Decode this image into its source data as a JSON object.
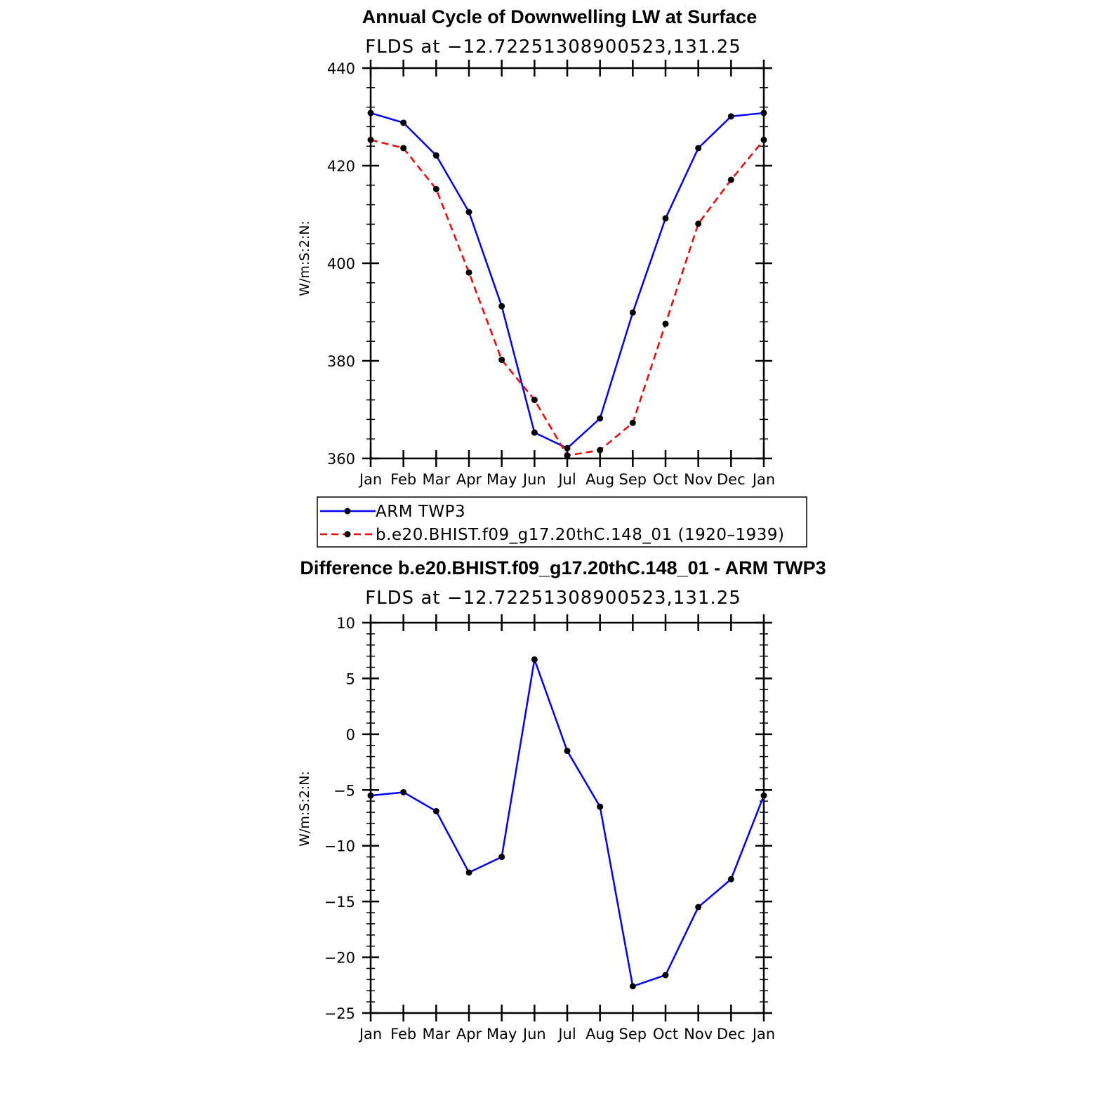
{
  "chart_data": [
    {
      "type": "line",
      "title": "Annual Cycle of Downwelling LW at Surface",
      "subtitle": "FLDS at −12.72251308900523,131.25",
      "ylabel": "W/m:S:2:N:",
      "xlabel": "",
      "ylim": [
        360,
        440
      ],
      "yticks": [
        360,
        380,
        400,
        420,
        440
      ],
      "yticklabels": [
        "360",
        "380",
        "400",
        "420",
        "440"
      ],
      "categories": [
        "Jan",
        "Feb",
        "Mar",
        "Apr",
        "May",
        "Jun",
        "Jul",
        "Aug",
        "Sep",
        "Oct",
        "Nov",
        "Dec",
        "Jan"
      ],
      "series": [
        {
          "name": "ARM TWP3",
          "color": "#0000ff",
          "dash": "solid",
          "values": [
            430.8,
            428.8,
            422.1,
            410.5,
            391.2,
            365.3,
            362.1,
            368.2,
            389.9,
            409.2,
            423.6,
            430.1,
            430.8
          ]
        },
        {
          "name": "b.e20.BHIST.f09_g17.20thC.148_01 (1920–1939)",
          "color": "#ff0000",
          "dash": "dashed",
          "values": [
            425.3,
            423.6,
            415.2,
            398.1,
            380.2,
            372.0,
            360.6,
            361.7,
            367.3,
            387.6,
            408.1,
            417.1,
            425.3
          ]
        }
      ],
      "legend": {
        "placement": "below",
        "entries": [
          "ARM TWP3",
          "b.e20.BHIST.f09_g17.20thC.148_01 (1920–1939)"
        ]
      },
      "grid": false
    },
    {
      "type": "line",
      "title": "Difference b.e20.BHIST.f09_g17.20thC.148_01 - ARM TWP3",
      "subtitle": "FLDS at −12.72251308900523,131.25",
      "ylabel": "W/m:S:2:N:",
      "xlabel": "",
      "ylim": [
        -25,
        10
      ],
      "yticks": [
        -25,
        -20,
        -15,
        -10,
        -5,
        0,
        5,
        10
      ],
      "yticklabels": [
        "−25",
        "−20",
        "−15",
        "−10",
        "−5",
        "0",
        "5",
        "10"
      ],
      "categories": [
        "Jan",
        "Feb",
        "Mar",
        "Apr",
        "May",
        "Jun",
        "Jul",
        "Aug",
        "Sep",
        "Oct",
        "Nov",
        "Dec",
        "Jan"
      ],
      "series": [
        {
          "color": "#0000ff",
          "dash": "solid",
          "values": [
            -5.5,
            -5.2,
            -6.9,
            -12.4,
            -11.0,
            6.7,
            -1.5,
            -6.5,
            -22.6,
            -21.6,
            -15.5,
            -13.0,
            -5.5
          ]
        }
      ],
      "grid": false
    }
  ]
}
